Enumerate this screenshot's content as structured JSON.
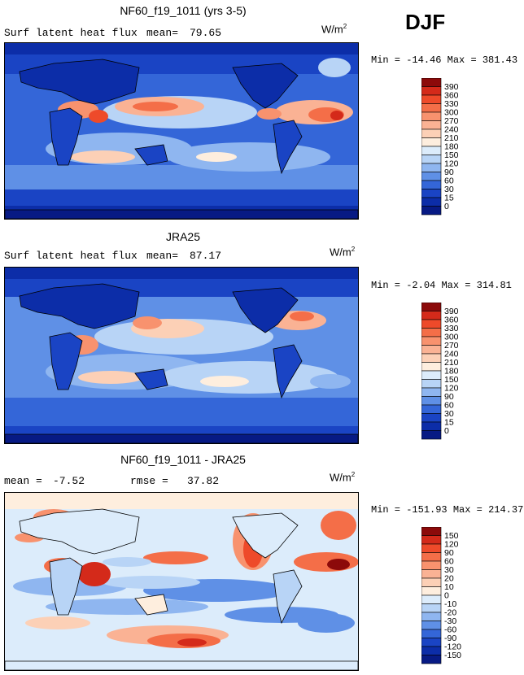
{
  "season": "DJF",
  "units_base": "W/m",
  "units_exp": "2",
  "panels": [
    {
      "title": "NF60_f19_1011 (yrs 3-5)",
      "left_label": "Surf latent heat flux",
      "stat_label": "mean=",
      "stat_value": "79.65",
      "min_label": "Min =",
      "min_value": "-14.46",
      "max_label": "Max =",
      "max_value": "381.43"
    },
    {
      "title": "JRA25",
      "left_label": "Surf latent heat flux",
      "stat_label": "mean=",
      "stat_value": "87.17",
      "min_label": "Min =",
      "min_value": "-2.04",
      "max_label": "Max =",
      "max_value": "314.81"
    },
    {
      "title": "NF60_f19_1011 - JRA25",
      "left_label": "mean =",
      "left_value": "-7.52",
      "stat_label": "rmse =",
      "stat_value": "37.82",
      "min_label": "Min =",
      "min_value": "-151.93",
      "max_label": "Max =",
      "max_value": "214.37"
    }
  ],
  "colorbar_abs": {
    "levels": [
      "390",
      "360",
      "330",
      "300",
      "270",
      "240",
      "210",
      "180",
      "150",
      "120",
      "90",
      "60",
      "30",
      "15",
      "0"
    ],
    "colors": [
      "#8c0a0a",
      "#d42a1a",
      "#ee4a2a",
      "#f46e48",
      "#f8926e",
      "#fab294",
      "#fcd0b6",
      "#feeede",
      "#dcecfb",
      "#b8d4f6",
      "#8fb6f0",
      "#5f90e6",
      "#3466d8",
      "#1a44c4",
      "#0c2da8",
      "#071a84"
    ]
  },
  "colorbar_diff": {
    "levels": [
      "150",
      "120",
      "90",
      "60",
      "30",
      "20",
      "10",
      "0",
      "-10",
      "-20",
      "-30",
      "-60",
      "-90",
      "-120",
      "-150"
    ],
    "colors": [
      "#8c0a0a",
      "#d42a1a",
      "#ee4a2a",
      "#f46e48",
      "#f8926e",
      "#fab294",
      "#fcd0b6",
      "#feeede",
      "#dcecfb",
      "#b8d4f6",
      "#8fb6f0",
      "#5f90e6",
      "#3466d8",
      "#1a44c4",
      "#0c2da8",
      "#071a84"
    ]
  },
  "chart_data": [
    {
      "type": "heatmap",
      "title": "NF60_f19_1011 (yrs 3-5)",
      "variable": "Surf latent heat flux",
      "mean": 79.65,
      "min": -14.46,
      "max": 381.43,
      "units": "W/m2",
      "season": "DJF",
      "contour_levels": [
        0,
        15,
        30,
        60,
        90,
        120,
        150,
        180,
        210,
        240,
        270,
        300,
        330,
        360,
        390
      ]
    },
    {
      "type": "heatmap",
      "title": "JRA25",
      "variable": "Surf latent heat flux",
      "mean": 87.17,
      "min": -2.04,
      "max": 314.81,
      "units": "W/m2",
      "season": "DJF",
      "contour_levels": [
        0,
        15,
        30,
        60,
        90,
        120,
        150,
        180,
        210,
        240,
        270,
        300,
        330,
        360,
        390
      ]
    },
    {
      "type": "heatmap",
      "title": "NF60_f19_1011 - JRA25",
      "mean": -7.52,
      "rmse": 37.82,
      "min": -151.93,
      "max": 214.37,
      "units": "W/m2",
      "season": "DJF",
      "contour_levels": [
        -150,
        -120,
        -90,
        -60,
        -30,
        -20,
        -10,
        0,
        10,
        20,
        30,
        60,
        90,
        120,
        150
      ]
    }
  ]
}
